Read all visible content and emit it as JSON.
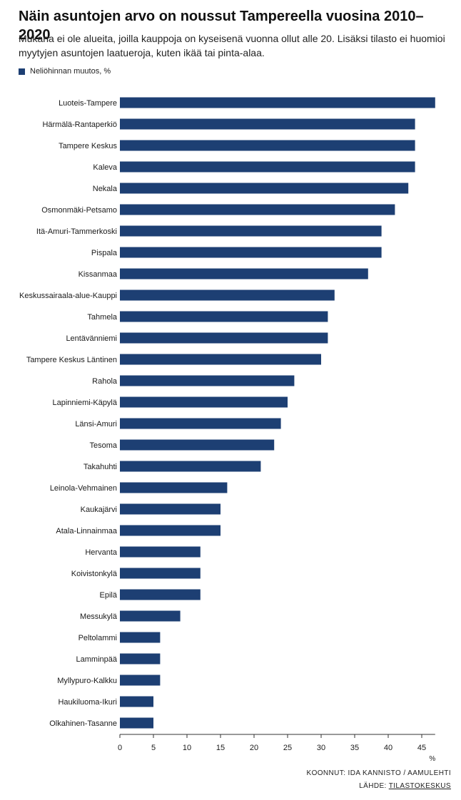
{
  "header": {
    "title": "Näin asuntojen arvo on noussut Tampereella vuosina 2010–2020",
    "subtitle": "Mukana ei ole alueita, joilla kauppoja on kyseisenä vuonna ollut alle 20. Lisäksi tilasto ei huomioi myytyjen asuntojen laatueroja, kuten ikää tai pinta-alaa."
  },
  "legend": {
    "label": "Neliöhinnan muutos, %",
    "color": "#1d3f73"
  },
  "credits": {
    "line1": "KOONNUT: IDA KANNISTO / AAMULEHTI",
    "source_prefix": "LÄHDE: ",
    "source_name": "TILASTOKESKUS"
  },
  "colors": {
    "bar": "#1d3f73",
    "axis": "#333333",
    "label": "#1a1a1a"
  },
  "chart_data": {
    "type": "bar",
    "orientation": "horizontal",
    "series": [
      {
        "name": "Neliöhinnan muutos, %"
      }
    ],
    "categories": [
      "Luoteis-Tampere",
      "Härmälä-Rantaperkiö",
      "Tampere Keskus",
      "Kaleva",
      "Nekala",
      "Osmonmäki-Petsamo",
      "Itä-Amuri-Tammerkoski",
      "Pispala",
      "Kissanmaa",
      "Keskussairaala-alue-Kauppi",
      "Tahmela",
      "Lentävänniemi",
      "Tampere Keskus Läntinen",
      "Rahola",
      "Lapinniemi-Käpylä",
      "Länsi-Amuri",
      "Tesoma",
      "Takahuhti",
      "Leinola-Vehmainen",
      "Kaukajärvi",
      "Atala-Linnainmaa",
      "Hervanta",
      "Koivistonkylä",
      "Epilä",
      "Messukylä",
      "Peltolammi",
      "Lamminpää",
      "Myllypuro-Kalkku",
      "Haukiluoma-Ikuri",
      "Olkahinen-Tasanne"
    ],
    "values": [
      47,
      44,
      44,
      44,
      43,
      41,
      39,
      39,
      37,
      32,
      31,
      31,
      30,
      26,
      25,
      24,
      23,
      21,
      16,
      15,
      15,
      12,
      12,
      12,
      9,
      6,
      6,
      6,
      5,
      5
    ],
    "xticks": [
      0,
      5,
      10,
      15,
      20,
      25,
      30,
      35,
      40,
      45
    ],
    "xlim": [
      0,
      47
    ],
    "xunit": "%",
    "grid": false
  }
}
